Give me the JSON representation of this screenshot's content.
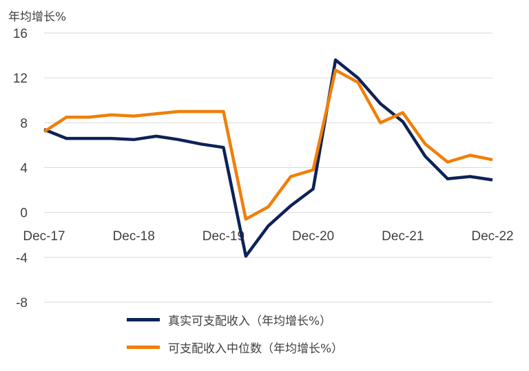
{
  "unit_label": "年均增长%",
  "chart_data": {
    "type": "line",
    "x": [
      "Dec-17",
      "Mar-18",
      "Jun-18",
      "Sep-18",
      "Dec-18",
      "Mar-19",
      "Jun-19",
      "Sep-19",
      "Dec-19",
      "Mar-20",
      "Jun-20",
      "Sep-20",
      "Dec-20",
      "Mar-21",
      "Jun-21",
      "Sep-21",
      "Dec-21",
      "Mar-22",
      "Jun-22",
      "Sep-22",
      "Dec-22"
    ],
    "xticks": [
      "Dec-17",
      "Dec-18",
      "Dec-19",
      "Dec-20",
      "Dec-21",
      "Dec-22"
    ],
    "ylim": [
      -8,
      16
    ],
    "yticks": [
      -8,
      -4,
      0,
      4,
      8,
      12,
      16
    ],
    "grid": true,
    "legend_position": "bottom",
    "series": [
      {
        "name": "真实可支配收入（年均增长%）",
        "color": "#0d2258",
        "values": [
          7.4,
          6.6,
          6.6,
          6.6,
          6.5,
          6.8,
          6.5,
          6.1,
          5.8,
          -3.9,
          -1.2,
          0.6,
          2.1,
          13.6,
          12.0,
          9.7,
          8.1,
          5.0,
          3.0,
          3.2,
          2.9
        ]
      },
      {
        "name": "可支配收入中位数（年均增长%）",
        "color": "#f07f09",
        "values": [
          7.2,
          8.5,
          8.5,
          8.7,
          8.6,
          8.8,
          9.0,
          9.0,
          9.0,
          -0.6,
          0.5,
          3.2,
          3.8,
          12.7,
          11.6,
          8.0,
          8.9,
          6.1,
          4.5,
          5.1,
          4.7
        ]
      }
    ]
  }
}
